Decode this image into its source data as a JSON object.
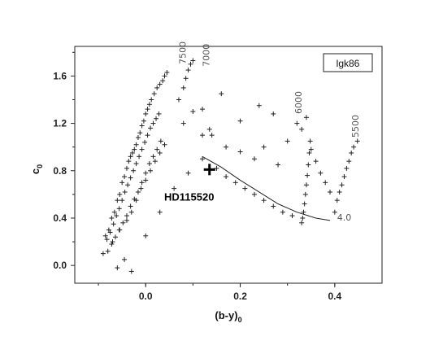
{
  "chart_data": {
    "type": "scatter",
    "xlabel": "(b-y)",
    "xlabel_subscript": "0",
    "ylabel": "c",
    "ylabel_subscript": "0",
    "xlim": [
      -0.15,
      0.5
    ],
    "ylim": [
      -0.15,
      1.85
    ],
    "xticks": [
      0.0,
      0.2,
      0.4
    ],
    "xtick_labels": [
      "0.0",
      "0.2",
      "0.4"
    ],
    "yticks": [
      0.0,
      0.4,
      0.8,
      1.2,
      1.6
    ],
    "ytick_labels": [
      "0.0",
      "0.4",
      "0.8",
      "1.2",
      "1.6"
    ],
    "legend": "lgk86",
    "grid": false,
    "series": [
      {
        "marker": "plus",
        "x": [
          -0.085,
          -0.078,
          -0.072,
          -0.066,
          -0.06,
          -0.055,
          -0.05,
          -0.045,
          -0.04,
          -0.036,
          -0.032,
          -0.028,
          -0.024,
          -0.02,
          -0.016,
          -0.012,
          -0.008,
          -0.004,
          0.0,
          0.004,
          0.008,
          0.012,
          0.018,
          0.024,
          0.03,
          0.036,
          0.04,
          0.045,
          -0.082,
          -0.075,
          -0.068,
          -0.062,
          -0.056,
          -0.05,
          -0.044,
          -0.038,
          -0.032,
          -0.026,
          -0.02,
          -0.014,
          -0.008,
          -0.002,
          0.004,
          0.01,
          0.016,
          0.022,
          0.028,
          -0.08,
          -0.072,
          -0.064,
          -0.056,
          -0.048,
          -0.04,
          -0.032,
          -0.024,
          -0.016,
          -0.008,
          0.0,
          0.008,
          0.016,
          0.024,
          0.032,
          -0.09,
          -0.07,
          -0.055,
          -0.04,
          -0.03,
          -0.02,
          -0.01,
          0.0,
          0.01,
          0.02,
          0.03,
          0.04,
          -0.06,
          -0.045,
          -0.03,
          0.0,
          0.03,
          0.06,
          0.09,
          0.12,
          0.07,
          0.08,
          0.085,
          0.09,
          0.095,
          0.1,
          0.12,
          0.135,
          0.16,
          0.2,
          0.24,
          0.27,
          0.3,
          0.32,
          0.33,
          0.34,
          0.35,
          0.36,
          0.37,
          0.38,
          0.39,
          0.08,
          0.1,
          0.12,
          0.14,
          0.17,
          0.2,
          0.23,
          0.25,
          0.28,
          0.15,
          0.17,
          0.19,
          0.21,
          0.23,
          0.25,
          0.27,
          0.29,
          0.31,
          0.33,
          0.332,
          0.334,
          0.336,
          0.338,
          0.34,
          0.342,
          0.344,
          0.346,
          0.348,
          0.4,
          0.405,
          0.41,
          0.415,
          0.42,
          0.425,
          0.43,
          0.435,
          0.44,
          0.448
        ],
        "y": [
          0.25,
          0.3,
          0.4,
          0.45,
          0.55,
          0.6,
          0.7,
          0.75,
          0.82,
          0.88,
          0.92,
          0.95,
          0.98,
          1.02,
          1.08,
          1.12,
          1.18,
          1.22,
          1.28,
          1.32,
          1.36,
          1.4,
          1.45,
          1.5,
          1.53,
          1.56,
          1.6,
          1.63,
          0.22,
          0.28,
          0.35,
          0.42,
          0.48,
          0.55,
          0.62,
          0.68,
          0.74,
          0.8,
          0.86,
          0.92,
          0.98,
          1.04,
          1.1,
          1.16,
          1.2,
          1.24,
          1.28,
          0.12,
          0.18,
          0.24,
          0.3,
          0.36,
          0.42,
          0.5,
          0.56,
          0.62,
          0.7,
          0.78,
          0.86,
          0.92,
          0.98,
          1.05,
          0.1,
          0.2,
          0.3,
          0.38,
          0.45,
          0.55,
          0.65,
          0.72,
          0.8,
          0.88,
          0.95,
          1.02,
          -0.02,
          0.05,
          -0.05,
          0.25,
          0.45,
          0.65,
          0.78,
          0.9,
          1.4,
          1.5,
          1.58,
          1.65,
          1.7,
          1.73,
          1.32,
          1.15,
          1.45,
          1.22,
          1.35,
          1.28,
          1.05,
          1.2,
          1.15,
          1.25,
          0.98,
          0.88,
          0.78,
          0.7,
          0.62,
          1.2,
          1.3,
          1.1,
          1.1,
          1.0,
          0.96,
          0.9,
          1.0,
          0.85,
          0.82,
          0.75,
          0.7,
          0.65,
          0.6,
          0.55,
          0.5,
          0.45,
          0.42,
          0.36,
          0.4,
          0.45,
          0.52,
          0.6,
          0.68,
          0.76,
          0.85,
          0.95,
          1.05,
          0.45,
          0.55,
          0.62,
          0.68,
          0.75,
          0.82,
          0.88,
          0.95,
          1.0,
          1.05
        ]
      },
      {
        "name": "4.0",
        "type": "line",
        "x": [
          0.12,
          0.16,
          0.2,
          0.24,
          0.28,
          0.32,
          0.36,
          0.39
        ],
        "y": [
          0.92,
          0.83,
          0.72,
          0.62,
          0.52,
          0.45,
          0.4,
          0.38
        ]
      }
    ],
    "annotations": [
      {
        "text": "7500",
        "x": 0.085,
        "y": 1.7,
        "rotate": -90
      },
      {
        "text": "7000",
        "x": 0.135,
        "y": 1.68,
        "rotate": -90
      },
      {
        "text": "6000",
        "x": 0.33,
        "y": 1.28,
        "rotate": -90
      },
      {
        "text": "5500",
        "x": 0.45,
        "y": 1.08,
        "rotate": -90
      },
      {
        "text": "4.0",
        "x": 0.405,
        "y": 0.38,
        "rotate": 0
      }
    ],
    "highlight": {
      "label": "HD115520",
      "x": 0.135,
      "y": 0.81
    }
  }
}
